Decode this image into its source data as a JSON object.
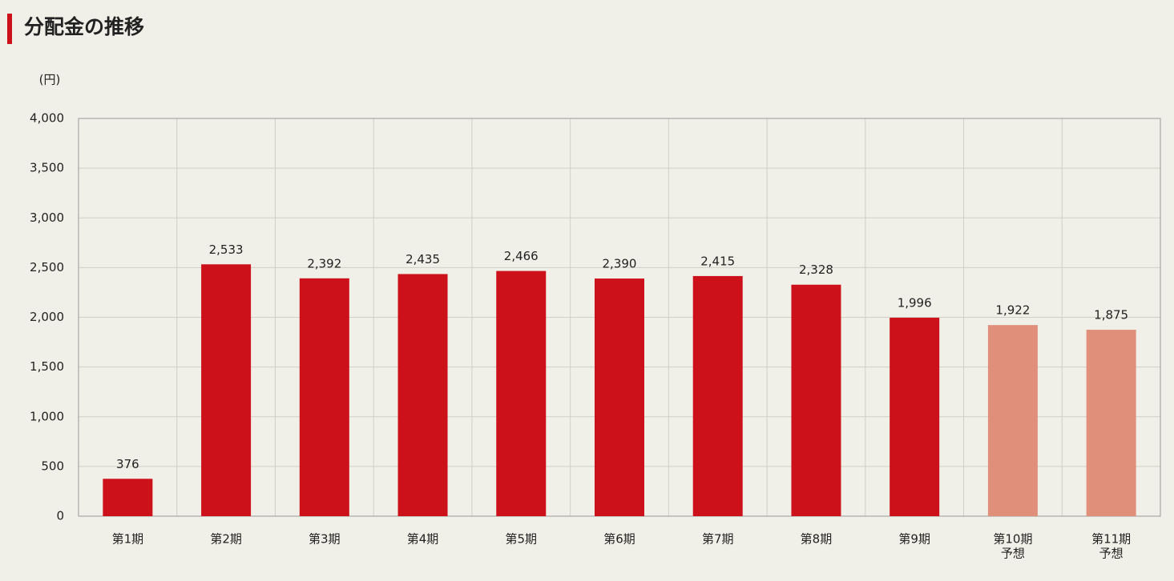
{
  "chart_data": {
    "type": "bar",
    "title": "分配金の推移",
    "y_label": "(円)",
    "categories": [
      "第1期",
      "第2期",
      "第3期",
      "第4期",
      "第5期",
      "第6期",
      "第7期",
      "第8期",
      "第9期",
      "第10期",
      "第11期"
    ],
    "category_notes": [
      null,
      null,
      null,
      null,
      null,
      null,
      null,
      null,
      null,
      "予想",
      "予想"
    ],
    "values": [
      376,
      2533,
      2392,
      2435,
      2466,
      2390,
      2415,
      2328,
      1996,
      1922,
      1875
    ],
    "value_labels": [
      "376",
      "2,533",
      "2,392",
      "2,435",
      "2,466",
      "2,390",
      "2,415",
      "2,328",
      "1,996",
      "1,922",
      "1,875"
    ],
    "colors": [
      "#cc111a",
      "#cc111a",
      "#cc111a",
      "#cc111a",
      "#cc111a",
      "#cc111a",
      "#cc111a",
      "#cc111a",
      "#cc111a",
      "#e0907a",
      "#e0907a"
    ],
    "ylim": [
      0,
      4000
    ],
    "yticks": [
      0,
      500,
      {
        "value": 1000,
        "label": "1,000"
      },
      {
        "value": 1500,
        "label": "1,500"
      },
      {
        "value": 2000,
        "label": "2,000"
      },
      {
        "value": 2500,
        "label": "2,500"
      },
      {
        "value": 3000,
        "label": "3,000"
      },
      {
        "value": 3500,
        "label": "3,500"
      },
      {
        "value": 4000,
        "label": "4,000"
      }
    ],
    "grid": true
  }
}
